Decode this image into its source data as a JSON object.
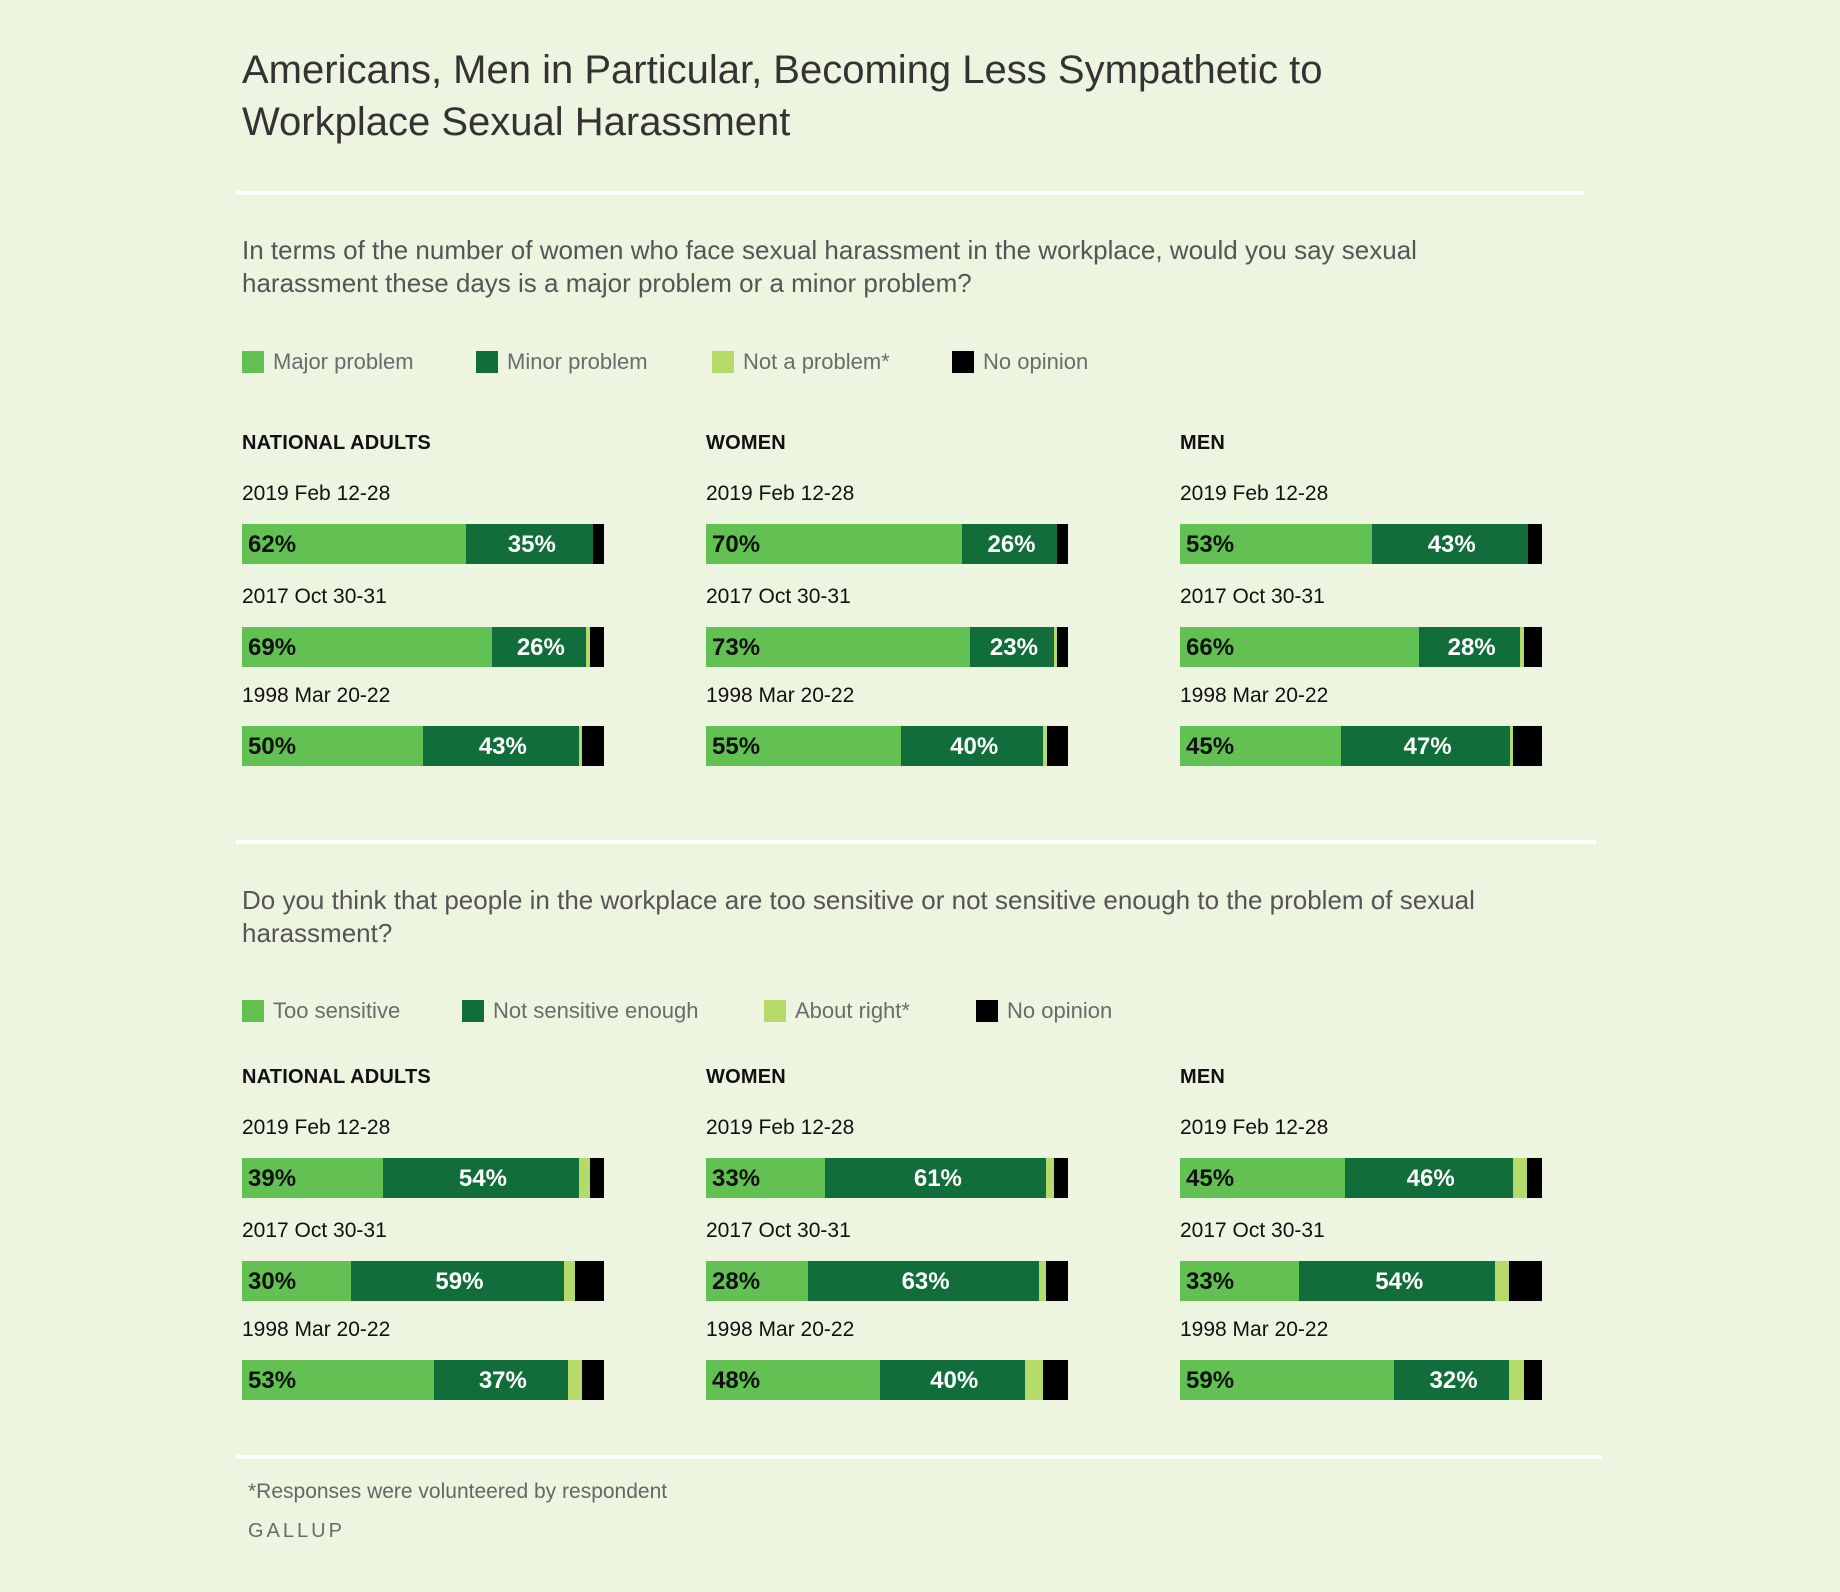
{
  "title": "Americans, Men in Particular, Becoming Less Sympathetic to Workplace Sexual Harassment",
  "footnote": "*Responses were volunteered by respondent",
  "brand": "GALLUP",
  "colors": {
    "major": "#62c152",
    "minor": "#116d3a",
    "not": "#b4da6a",
    "noop": "#000000",
    "background": "#edf4df"
  },
  "chart_data": [
    {
      "type": "bar",
      "stacked": true,
      "orientation": "horizontal",
      "question": "In terms of the number of women who face sexual harassment in the workplace, would you say sexual harassment these days is a major problem or a minor problem?",
      "legend": [
        "Major problem",
        "Minor problem",
        "Not a problem*",
        "No opinion"
      ],
      "groups": [
        {
          "name": "NATIONAL ADULTS",
          "rows": [
            {
              "label": "2019 Feb 12-28",
              "values": [
                62,
                35,
                0,
                3
              ]
            },
            {
              "label": "2017 Oct 30-31",
              "values": [
                69,
                26,
                1,
                4
              ]
            },
            {
              "label": "1998 Mar 20-22",
              "values": [
                50,
                43,
                1,
                6
              ]
            }
          ]
        },
        {
          "name": "WOMEN",
          "rows": [
            {
              "label": "2019 Feb 12-28",
              "values": [
                70,
                26,
                0,
                3
              ]
            },
            {
              "label": "2017 Oct 30-31",
              "values": [
                73,
                23,
                1,
                3
              ]
            },
            {
              "label": "1998 Mar 20-22",
              "values": [
                55,
                40,
                1,
                6
              ]
            }
          ]
        },
        {
          "name": "MEN",
          "rows": [
            {
              "label": "2019 Feb 12-28",
              "values": [
                53,
                43,
                0,
                4
              ]
            },
            {
              "label": "2017 Oct 30-31",
              "values": [
                66,
                28,
                1,
                5
              ]
            },
            {
              "label": "1998 Mar 20-22",
              "values": [
                45,
                47,
                1,
                8
              ]
            }
          ]
        }
      ]
    },
    {
      "type": "bar",
      "stacked": true,
      "orientation": "horizontal",
      "question": "Do you think that people in the workplace are too sensitive or not sensitive enough to the problem of sexual harassment?",
      "legend": [
        "Too sensitive",
        "Not sensitive enough",
        "About right*",
        "No opinion"
      ],
      "groups": [
        {
          "name": "NATIONAL ADULTS",
          "rows": [
            {
              "label": "2019 Feb 12-28",
              "values": [
                39,
                54,
                3,
                4
              ]
            },
            {
              "label": "2017 Oct 30-31",
              "values": [
                30,
                59,
                3,
                8
              ]
            },
            {
              "label": "1998 Mar 20-22",
              "values": [
                53,
                37,
                4,
                6
              ]
            }
          ]
        },
        {
          "name": "WOMEN",
          "rows": [
            {
              "label": "2019 Feb 12-28",
              "values": [
                33,
                61,
                2,
                4
              ]
            },
            {
              "label": "2017 Oct 30-31",
              "values": [
                28,
                63,
                2,
                6
              ]
            },
            {
              "label": "1998 Mar 20-22",
              "values": [
                48,
                40,
                5,
                7
              ]
            }
          ]
        },
        {
          "name": "MEN",
          "rows": [
            {
              "label": "2019 Feb 12-28",
              "values": [
                45,
                46,
                4,
                4
              ]
            },
            {
              "label": "2017 Oct 30-31",
              "values": [
                33,
                54,
                4,
                9
              ]
            },
            {
              "label": "1998 Mar 20-22",
              "values": [
                59,
                32,
                4,
                5
              ]
            }
          ]
        }
      ]
    }
  ]
}
